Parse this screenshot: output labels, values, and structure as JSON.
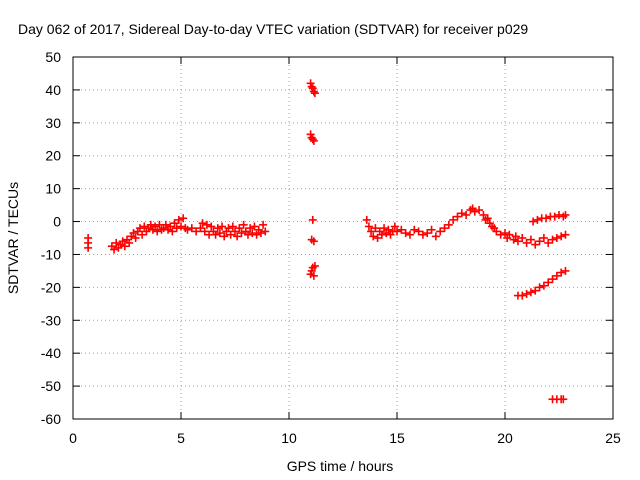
{
  "chart_data": {
    "type": "scatter",
    "title": "Day 062 of 2017, Sidereal Day-to-day VTEC variation (SDTVAR) for receiver p029",
    "xlabel": "GPS time / hours",
    "ylabel": "SDTVAR / TECUs",
    "xlim": [
      0,
      25
    ],
    "ylim": [
      -60,
      50
    ],
    "xticks": [
      0,
      5,
      10,
      15,
      20,
      25
    ],
    "yticks": [
      50,
      40,
      30,
      20,
      10,
      0,
      -10,
      -20,
      -30,
      -40,
      -50,
      -60
    ],
    "grid": true,
    "marker": "plus",
    "color": "#ff0000",
    "series": [
      {
        "points": [
          [
            0.7,
            -5
          ],
          [
            0.7,
            -6.5
          ],
          [
            0.7,
            -8
          ],
          [
            1.8,
            -7.5
          ],
          [
            1.9,
            -8.5
          ],
          [
            2.0,
            -6.5
          ],
          [
            2.1,
            -8
          ],
          [
            2.2,
            -7
          ],
          [
            2.3,
            -6
          ],
          [
            2.4,
            -7.5
          ],
          [
            2.5,
            -5.5
          ],
          [
            2.6,
            -6.5
          ],
          [
            2.7,
            -4.5
          ],
          [
            2.8,
            -3.5
          ],
          [
            2.9,
            -5
          ],
          [
            3.0,
            -3
          ],
          [
            3.1,
            -2
          ],
          [
            3.2,
            -4
          ],
          [
            3.3,
            -1.5
          ],
          [
            3.4,
            -3
          ],
          [
            3.5,
            -2
          ],
          [
            3.6,
            -1
          ],
          [
            3.7,
            -2.5
          ],
          [
            3.8,
            -1.5
          ],
          [
            3.9,
            -3
          ],
          [
            4.0,
            -1
          ],
          [
            4.1,
            -2.5
          ],
          [
            4.2,
            -2
          ],
          [
            4.3,
            -1
          ],
          [
            4.4,
            -2.5
          ],
          [
            4.5,
            -1.5
          ],
          [
            4.6,
            -3
          ],
          [
            4.7,
            -0.5
          ],
          [
            4.8,
            -2
          ],
          [
            4.9,
            0.5
          ],
          [
            5.0,
            -1.5
          ],
          [
            5.1,
            1
          ],
          [
            5.2,
            -2
          ],
          [
            5.3,
            -2.5
          ],
          [
            5.5,
            -2
          ],
          [
            5.7,
            -3
          ],
          [
            5.9,
            -2
          ],
          [
            6.0,
            -0.5
          ],
          [
            6.1,
            -3
          ],
          [
            6.2,
            -1
          ],
          [
            6.3,
            -4
          ],
          [
            6.4,
            -1.5
          ],
          [
            6.5,
            -3
          ],
          [
            6.6,
            -4
          ],
          [
            6.7,
            -2
          ],
          [
            6.8,
            -3.5
          ],
          [
            6.9,
            -1.5
          ],
          [
            7.0,
            -4.5
          ],
          [
            7.1,
            -3
          ],
          [
            7.2,
            -2
          ],
          [
            7.3,
            -4
          ],
          [
            7.4,
            -1.5
          ],
          [
            7.5,
            -3
          ],
          [
            7.6,
            -4.5
          ],
          [
            7.7,
            -2
          ],
          [
            7.8,
            -3.5
          ],
          [
            7.9,
            -1
          ],
          [
            8.0,
            -3
          ],
          [
            8.1,
            -4
          ],
          [
            8.2,
            -2
          ],
          [
            8.3,
            -3.5
          ],
          [
            8.4,
            -1.5
          ],
          [
            8.5,
            -4
          ],
          [
            8.6,
            -2.5
          ],
          [
            8.7,
            -3.5
          ],
          [
            8.8,
            -1
          ],
          [
            8.9,
            -3
          ],
          [
            11.0,
            42
          ],
          [
            11.05,
            41
          ],
          [
            11.1,
            40.5
          ],
          [
            11.15,
            39.5
          ],
          [
            11.2,
            39
          ],
          [
            11.0,
            26.5
          ],
          [
            11.05,
            25.5
          ],
          [
            11.1,
            25
          ],
          [
            11.15,
            24.5
          ],
          [
            11.1,
            0.5
          ],
          [
            11.05,
            -5.5
          ],
          [
            11.15,
            -6
          ],
          [
            11.0,
            -16
          ],
          [
            11.05,
            -15
          ],
          [
            11.1,
            -14
          ],
          [
            11.15,
            -16.5
          ],
          [
            11.2,
            -13.5
          ],
          [
            13.6,
            0.5
          ],
          [
            13.7,
            -1.5
          ],
          [
            13.8,
            -3
          ],
          [
            13.9,
            -4.5
          ],
          [
            14.0,
            -2
          ],
          [
            14.1,
            -5
          ],
          [
            14.2,
            -3
          ],
          [
            14.3,
            -4
          ],
          [
            14.4,
            -2
          ],
          [
            14.5,
            -3.5
          ],
          [
            14.6,
            -2.5
          ],
          [
            14.7,
            -4
          ],
          [
            14.8,
            -3
          ],
          [
            14.9,
            -1.5
          ],
          [
            15.0,
            -3
          ],
          [
            15.2,
            -2.5
          ],
          [
            15.4,
            -3.5
          ],
          [
            15.6,
            -4
          ],
          [
            15.8,
            -2.5
          ],
          [
            16.0,
            -3
          ],
          [
            16.2,
            -4
          ],
          [
            16.4,
            -3.5
          ],
          [
            16.6,
            -2.5
          ],
          [
            16.8,
            -4.5
          ],
          [
            17.0,
            -3
          ],
          [
            17.2,
            -2
          ],
          [
            17.4,
            -1
          ],
          [
            17.6,
            0.5
          ],
          [
            17.8,
            1.5
          ],
          [
            18.0,
            2.5
          ],
          [
            18.2,
            2
          ],
          [
            18.4,
            3.5
          ],
          [
            18.5,
            4
          ],
          [
            18.6,
            3
          ],
          [
            18.8,
            3.5
          ],
          [
            19.0,
            2
          ],
          [
            19.1,
            0.5
          ],
          [
            19.2,
            1
          ],
          [
            19.3,
            -0.5
          ],
          [
            19.4,
            -1.5
          ],
          [
            19.5,
            -2
          ],
          [
            19.6,
            -3
          ],
          [
            19.8,
            -4
          ],
          [
            20.0,
            -3.5
          ],
          [
            20.1,
            -5
          ],
          [
            20.2,
            -4
          ],
          [
            20.4,
            -5.5
          ],
          [
            20.5,
            -4.5
          ],
          [
            20.6,
            -6
          ],
          [
            20.8,
            -5
          ],
          [
            21.0,
            -6.5
          ],
          [
            21.2,
            -5.5
          ],
          [
            21.4,
            -7
          ],
          [
            21.6,
            -6
          ],
          [
            21.8,
            -5
          ],
          [
            22.0,
            -6.5
          ],
          [
            22.2,
            -5.5
          ],
          [
            22.4,
            -5
          ],
          [
            22.6,
            -4.5
          ],
          [
            22.8,
            -4
          ],
          [
            21.3,
            0
          ],
          [
            21.5,
            0.5
          ],
          [
            21.7,
            1
          ],
          [
            21.9,
            1
          ],
          [
            22.1,
            1.5
          ],
          [
            22.3,
            1.5
          ],
          [
            22.5,
            2
          ],
          [
            22.7,
            1.5
          ],
          [
            22.8,
            2
          ],
          [
            20.6,
            -22.5
          ],
          [
            20.8,
            -22.5
          ],
          [
            21.0,
            -22
          ],
          [
            21.2,
            -21.5
          ],
          [
            21.4,
            -21
          ],
          [
            21.6,
            -20
          ],
          [
            21.8,
            -19.5
          ],
          [
            22.0,
            -18.5
          ],
          [
            22.2,
            -17.5
          ],
          [
            22.4,
            -16.5
          ],
          [
            22.6,
            -15.5
          ],
          [
            22.8,
            -15
          ],
          [
            22.2,
            -54
          ],
          [
            22.4,
            -54
          ],
          [
            22.6,
            -54
          ],
          [
            22.7,
            -54
          ]
        ]
      }
    ]
  }
}
